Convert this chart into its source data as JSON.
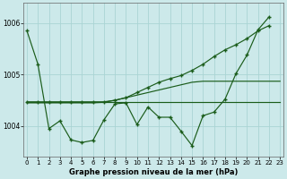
{
  "title": "Graphe pression niveau de la mer (hPa)",
  "bg_color": "#cce9ea",
  "line_color": "#1a5c1a",
  "grid_color": "#aad4d4",
  "ylim": [
    1003.4,
    1006.4
  ],
  "yticks": [
    1004,
    1005,
    1006
  ],
  "ytick_labels": [
    "1004",
    "1005",
    "1006"
  ],
  "x_labels": [
    "0",
    "1",
    "2",
    "3",
    "4",
    "5",
    "6",
    "7",
    "8",
    "9",
    "10",
    "11",
    "12",
    "13",
    "14",
    "15",
    "16",
    "17",
    "18",
    "19",
    "20",
    "21",
    "22",
    "23"
  ],
  "series_zigzag": [
    1005.85,
    1005.2,
    1003.95,
    1004.1,
    1003.73,
    1003.68,
    1003.72,
    1004.12,
    1004.43,
    1004.45,
    1004.03,
    1004.37,
    1004.17,
    1004.17,
    1003.9,
    1003.62,
    1004.2,
    1004.27,
    1004.52,
    1005.02,
    1005.38,
    1005.87,
    1006.12,
    null
  ],
  "series_smooth": [
    1004.45,
    1004.45,
    1004.45,
    1004.45,
    1004.45,
    1004.45,
    1004.45,
    1004.46,
    1004.5,
    1004.55,
    1004.6,
    1004.65,
    1004.7,
    1004.75,
    1004.8,
    1004.85,
    1004.87,
    1004.87,
    1004.87,
    1004.87,
    1004.87,
    1004.87,
    1004.87,
    1004.87
  ],
  "series_flat": [
    1004.47,
    1004.47,
    1004.47,
    1004.47,
    1004.47,
    1004.47,
    1004.47,
    1004.47,
    1004.47,
    1004.47,
    1004.47,
    1004.47,
    1004.47,
    1004.47,
    1004.47,
    1004.47,
    1004.47,
    1004.47,
    1004.47,
    1004.47,
    1004.47,
    1004.47,
    1004.47,
    1004.47
  ],
  "series_rising": [
    1004.47,
    1004.47,
    1004.47,
    1004.47,
    1004.47,
    1004.47,
    1004.47,
    1004.47,
    1004.5,
    1004.55,
    1004.65,
    1004.75,
    1004.85,
    1004.92,
    1004.98,
    1005.08,
    1005.2,
    1005.35,
    1005.48,
    1005.58,
    1005.7,
    1005.85,
    1005.95,
    null
  ]
}
